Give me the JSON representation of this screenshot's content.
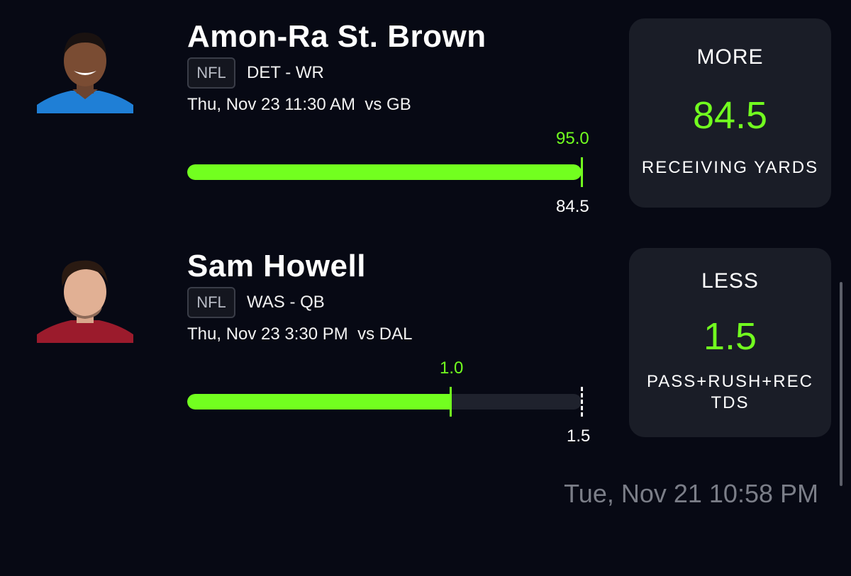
{
  "picks": [
    {
      "player_name": "Amon-Ra St. Brown",
      "league": "NFL",
      "team_position": "DET - WR",
      "game_info": "Thu, Nov 23 11:30 AM  vs GB",
      "actual_value": "95.0",
      "line_value": "84.5",
      "progress_fraction": 1.0,
      "pick_type": "MORE",
      "pick_line": "84.5",
      "stat_type": "RECEIVING YARDS",
      "avatar_icon": "player-headshot-icon",
      "jersey_color": "#1f7fd6"
    },
    {
      "player_name": "Sam Howell",
      "league": "NFL",
      "team_position": "WAS - QB",
      "game_info": "Thu, Nov 23 3:30 PM  vs DAL",
      "actual_value": "1.0",
      "line_value": "1.5",
      "progress_fraction": 0.667,
      "pick_type": "LESS",
      "pick_line": "1.5",
      "stat_type": "PASS+RUSH+REC TDS",
      "avatar_icon": "player-headshot-icon",
      "jersey_color": "#9b1b2c"
    }
  ],
  "timestamp": "Tue, Nov 21 10:58 PM",
  "colors": {
    "accent_green": "#72ff1f",
    "background": "#070914",
    "card": "#1a1d27",
    "track": "#1f222d",
    "muted_text": "#7b7e88"
  }
}
